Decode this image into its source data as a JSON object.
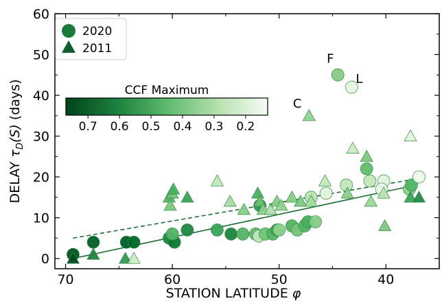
{
  "chart_data": {
    "type": "scatter",
    "xlabel": "STATION LATITUDE",
    "xlabel_symbol": "φ",
    "ylabel": "DELAY",
    "ylabel_symbol": "τ",
    "ylabel_sub": "D",
    "ylabel_arg": "(S)",
    "ylabel_unit": "(days)",
    "xlim": [
      71,
      35
    ],
    "ylim": [
      -2.5,
      60
    ],
    "x_inverted": true,
    "xticks": [
      70,
      60,
      50,
      40
    ],
    "yticks": [
      0,
      10,
      20,
      30,
      40,
      50,
      60
    ],
    "grid": false,
    "legend": {
      "position": "top-left",
      "entries": [
        "2020",
        "2011"
      ]
    },
    "colorbar": {
      "label": "CCF Maximum",
      "ticks": [
        0.7,
        0.6,
        0.5,
        0.4,
        0.3,
        0.2
      ],
      "range": [
        0.77,
        0.13
      ],
      "colormap": "Greens",
      "color_dark": "#00441b",
      "color_light": "#f7fcf5"
    },
    "series": [
      {
        "name": "2020",
        "marker": "circle",
        "fit": {
          "style": "solid",
          "x": [
            69.3,
            37.2
          ],
          "y": [
            0.0,
            18.0
          ]
        },
        "points": [
          {
            "x": 69.3,
            "y": 1,
            "c": 0.74
          },
          {
            "x": 67.4,
            "y": 4,
            "c": 0.72
          },
          {
            "x": 64.3,
            "y": 4,
            "c": 0.72
          },
          {
            "x": 63.6,
            "y": 4,
            "c": 0.7
          },
          {
            "x": 60.3,
            "y": 5,
            "c": 0.62
          },
          {
            "x": 59.8,
            "y": 4,
            "c": 0.66
          },
          {
            "x": 60.0,
            "y": 6,
            "c": 0.5
          },
          {
            "x": 58.6,
            "y": 7,
            "c": 0.62
          },
          {
            "x": 55.8,
            "y": 7,
            "c": 0.55
          },
          {
            "x": 54.5,
            "y": 6,
            "c": 0.63
          },
          {
            "x": 53.4,
            "y": 6,
            "c": 0.5
          },
          {
            "x": 52.2,
            "y": 6,
            "c": 0.48
          },
          {
            "x": 51.9,
            "y": 5.5,
            "c": 0.3
          },
          {
            "x": 51.8,
            "y": 13,
            "c": 0.58
          },
          {
            "x": 51.3,
            "y": 6,
            "c": 0.45
          },
          {
            "x": 50.6,
            "y": 6,
            "c": 0.5
          },
          {
            "x": 50.2,
            "y": 7,
            "c": 0.55
          },
          {
            "x": 50.0,
            "y": 7,
            "c": 0.4
          },
          {
            "x": 48.8,
            "y": 8,
            "c": 0.5
          },
          {
            "x": 48.3,
            "y": 7,
            "c": 0.45
          },
          {
            "x": 47.6,
            "y": 8,
            "c": 0.5
          },
          {
            "x": 47.3,
            "y": 9,
            "c": 0.52
          },
          {
            "x": 47.0,
            "y": 15,
            "c": 0.32
          },
          {
            "x": 46.6,
            "y": 9,
            "c": 0.42
          },
          {
            "x": 45.6,
            "y": 16,
            "c": 0.22
          },
          {
            "x": 44.5,
            "y": 45,
            "c": 0.42
          },
          {
            "x": 43.7,
            "y": 18,
            "c": 0.3
          },
          {
            "x": 43.2,
            "y": 42,
            "c": 0.2
          },
          {
            "x": 41.8,
            "y": 22,
            "c": 0.48
          },
          {
            "x": 41.5,
            "y": 19,
            "c": 0.3
          },
          {
            "x": 40.2,
            "y": 19,
            "c": 0.22
          },
          {
            "x": 40.4,
            "y": 17,
            "c": 0.2
          },
          {
            "x": 37.8,
            "y": 17,
            "c": 0.4
          },
          {
            "x": 37.6,
            "y": 18,
            "c": 0.5
          },
          {
            "x": 36.9,
            "y": 20,
            "c": 0.18
          }
        ]
      },
      {
        "name": "2011",
        "marker": "triangle",
        "fit": {
          "style": "dashed",
          "x": [
            69.3,
            37.2
          ],
          "y": [
            5.0,
            19.5
          ]
        },
        "points": [
          {
            "x": 69.3,
            "y": 0,
            "c": 0.76
          },
          {
            "x": 67.4,
            "y": 1,
            "c": 0.64
          },
          {
            "x": 64.4,
            "y": 0,
            "c": 0.58
          },
          {
            "x": 63.6,
            "y": 0,
            "c": 0.28
          },
          {
            "x": 60.3,
            "y": 15,
            "c": 0.5
          },
          {
            "x": 60.2,
            "y": 13,
            "c": 0.44
          },
          {
            "x": 60.0,
            "y": 16,
            "c": 0.46
          },
          {
            "x": 59.9,
            "y": 17,
            "c": 0.52
          },
          {
            "x": 58.6,
            "y": 15,
            "c": 0.56
          },
          {
            "x": 55.8,
            "y": 19,
            "c": 0.3
          },
          {
            "x": 54.6,
            "y": 14,
            "c": 0.36
          },
          {
            "x": 53.3,
            "y": 12,
            "c": 0.42
          },
          {
            "x": 52.0,
            "y": 16,
            "c": 0.52
          },
          {
            "x": 51.8,
            "y": 14,
            "c": 0.46
          },
          {
            "x": 51.5,
            "y": 12,
            "c": 0.4
          },
          {
            "x": 50.8,
            "y": 12,
            "c": 0.34
          },
          {
            "x": 50.2,
            "y": 14,
            "c": 0.42
          },
          {
            "x": 49.8,
            "y": 13,
            "c": 0.4
          },
          {
            "x": 48.8,
            "y": 15,
            "c": 0.42
          },
          {
            "x": 48.0,
            "y": 14,
            "c": 0.44
          },
          {
            "x": 47.2,
            "y": 35,
            "c": 0.4
          },
          {
            "x": 47.0,
            "y": 14,
            "c": 0.36
          },
          {
            "x": 45.7,
            "y": 19,
            "c": 0.3
          },
          {
            "x": 43.6,
            "y": 16,
            "c": 0.42
          },
          {
            "x": 43.1,
            "y": 27,
            "c": 0.28
          },
          {
            "x": 41.8,
            "y": 25,
            "c": 0.44
          },
          {
            "x": 41.4,
            "y": 14,
            "c": 0.38
          },
          {
            "x": 40.2,
            "y": 16,
            "c": 0.32
          },
          {
            "x": 40.1,
            "y": 8,
            "c": 0.44
          },
          {
            "x": 37.7,
            "y": 30,
            "c": 0.22
          },
          {
            "x": 37.7,
            "y": 15,
            "c": 0.56
          },
          {
            "x": 36.9,
            "y": 15,
            "c": 0.62
          }
        ]
      }
    ],
    "annotations": [
      {
        "text": "F",
        "x": 45.2,
        "y": 48
      },
      {
        "text": "L",
        "x": 42.5,
        "y": 43
      },
      {
        "text": "C",
        "x": 48.3,
        "y": 37
      }
    ]
  }
}
